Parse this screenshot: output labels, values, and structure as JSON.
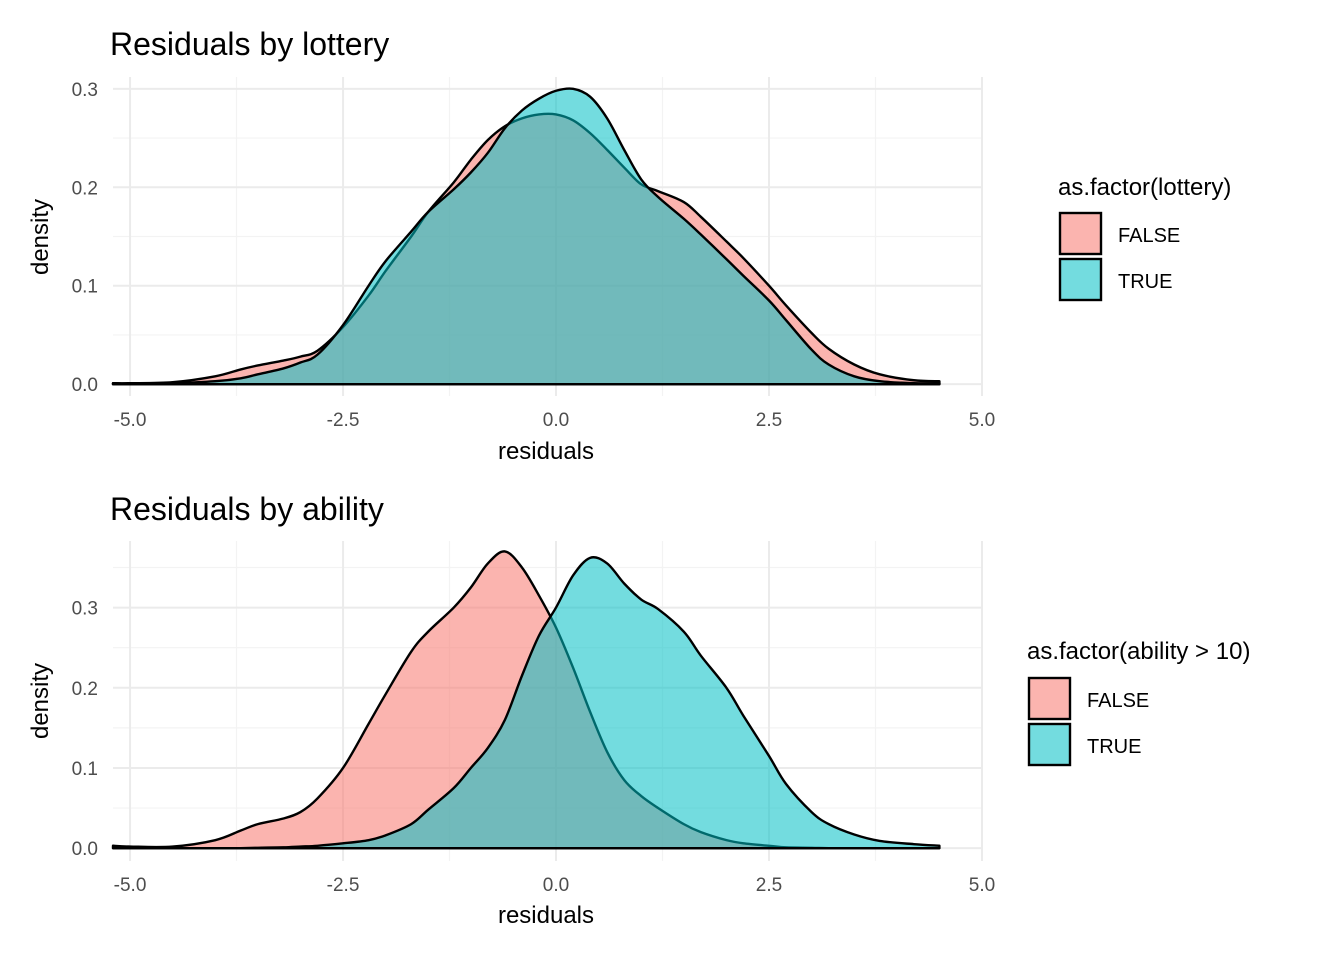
{
  "colors": {
    "false_fill": "#F8766D",
    "true_fill": "#00BFC4",
    "fill_alpha": 0.55,
    "outline": "#000000",
    "grid": "#EBEBEB"
  },
  "chart_data": [
    {
      "type": "area",
      "title": "Residuals by lottery",
      "xlabel": "residuals",
      "ylabel": "density",
      "xlim": [
        -5.2,
        5.0
      ],
      "ylim": [
        -0.012,
        0.312
      ],
      "x_ticks": [
        -5.0,
        -2.5,
        0.0,
        2.5,
        5.0
      ],
      "x_tick_labels": [
        "-5.0",
        "-2.5",
        "0.0",
        "2.5",
        "5.0"
      ],
      "y_ticks": [
        0.0,
        0.1,
        0.2,
        0.3
      ],
      "y_tick_labels": [
        "0.0",
        "0.1",
        "0.2",
        "0.3"
      ],
      "grid": true,
      "legend": {
        "title": "as.factor(lottery)",
        "position": "right",
        "entries": [
          "FALSE",
          "TRUE"
        ]
      },
      "series": [
        {
          "name": "FALSE",
          "color": "#F8766D",
          "x": [
            -5.2,
            -5.0,
            -4.5,
            -4.0,
            -3.7,
            -3.5,
            -3.2,
            -3.0,
            -2.8,
            -2.5,
            -2.2,
            -2.0,
            -1.7,
            -1.5,
            -1.2,
            -1.0,
            -0.8,
            -0.6,
            -0.4,
            -0.2,
            0.0,
            0.2,
            0.4,
            0.6,
            0.8,
            1.0,
            1.2,
            1.5,
            1.7,
            2.0,
            2.2,
            2.5,
            2.7,
            3.0,
            3.2,
            3.5,
            3.8,
            4.2,
            4.5
          ],
          "y": [
            0.001,
            0.001,
            0.002,
            0.008,
            0.015,
            0.019,
            0.024,
            0.028,
            0.034,
            0.058,
            0.09,
            0.115,
            0.15,
            0.175,
            0.205,
            0.228,
            0.248,
            0.262,
            0.27,
            0.274,
            0.274,
            0.268,
            0.255,
            0.238,
            0.22,
            0.203,
            0.196,
            0.185,
            0.17,
            0.145,
            0.128,
            0.1,
            0.08,
            0.052,
            0.036,
            0.02,
            0.01,
            0.004,
            0.003
          ]
        },
        {
          "name": "TRUE",
          "color": "#00BFC4",
          "x": [
            -5.2,
            -5.0,
            -4.5,
            -4.0,
            -3.7,
            -3.5,
            -3.2,
            -3.0,
            -2.8,
            -2.5,
            -2.2,
            -2.0,
            -1.7,
            -1.5,
            -1.2,
            -1.0,
            -0.8,
            -0.6,
            -0.4,
            -0.2,
            0.0,
            0.2,
            0.4,
            0.6,
            0.8,
            1.0,
            1.2,
            1.5,
            1.7,
            2.0,
            2.2,
            2.5,
            2.7,
            3.0,
            3.2,
            3.5,
            3.8,
            4.2,
            4.5
          ],
          "y": [
            0.001,
            0.0005,
            0.001,
            0.003,
            0.006,
            0.01,
            0.016,
            0.022,
            0.03,
            0.06,
            0.1,
            0.125,
            0.155,
            0.175,
            0.198,
            0.215,
            0.235,
            0.26,
            0.278,
            0.29,
            0.298,
            0.3,
            0.292,
            0.27,
            0.238,
            0.208,
            0.19,
            0.168,
            0.152,
            0.127,
            0.11,
            0.085,
            0.065,
            0.035,
            0.02,
            0.008,
            0.003,
            0.001,
            0.001
          ]
        }
      ]
    },
    {
      "type": "area",
      "title": "Residuals by ability",
      "xlabel": "residuals",
      "ylabel": "density",
      "xlim": [
        -5.2,
        5.0
      ],
      "ylim": [
        -0.016,
        0.383
      ],
      "x_ticks": [
        -5.0,
        -2.5,
        0.0,
        2.5,
        5.0
      ],
      "x_tick_labels": [
        "-5.0",
        "-2.5",
        "0.0",
        "2.5",
        "5.0"
      ],
      "y_ticks": [
        0.0,
        0.1,
        0.2,
        0.3
      ],
      "y_tick_labels": [
        "0.0",
        "0.1",
        "0.2",
        "0.3"
      ],
      "grid": true,
      "legend": {
        "title": "as.factor(ability > 10)",
        "position": "right",
        "entries": [
          "FALSE",
          "TRUE"
        ]
      },
      "series": [
        {
          "name": "FALSE",
          "color": "#F8766D",
          "x": [
            -5.2,
            -5.0,
            -4.5,
            -4.0,
            -3.7,
            -3.5,
            -3.2,
            -3.0,
            -2.8,
            -2.5,
            -2.2,
            -2.0,
            -1.7,
            -1.5,
            -1.2,
            -1.0,
            -0.8,
            -0.6,
            -0.4,
            -0.2,
            0.0,
            0.2,
            0.4,
            0.6,
            0.8,
            1.0,
            1.2,
            1.5,
            1.7,
            2.0,
            2.2,
            2.5,
            2.7,
            3.0,
            3.2,
            3.5,
            3.8,
            4.2,
            4.5
          ],
          "y": [
            0.003,
            0.002,
            0.002,
            0.01,
            0.022,
            0.03,
            0.037,
            0.045,
            0.062,
            0.1,
            0.155,
            0.192,
            0.245,
            0.27,
            0.3,
            0.325,
            0.355,
            0.37,
            0.35,
            0.315,
            0.275,
            0.225,
            0.17,
            0.12,
            0.085,
            0.065,
            0.05,
            0.03,
            0.02,
            0.01,
            0.006,
            0.003,
            0.001,
            0.0005,
            0.0,
            0.0,
            0.0,
            0.0,
            0.0
          ]
        },
        {
          "name": "TRUE",
          "color": "#00BFC4",
          "x": [
            -5.2,
            -5.0,
            -4.5,
            -4.0,
            -3.7,
            -3.5,
            -3.2,
            -3.0,
            -2.8,
            -2.5,
            -2.2,
            -2.0,
            -1.7,
            -1.5,
            -1.2,
            -1.0,
            -0.8,
            -0.6,
            -0.4,
            -0.2,
            0.0,
            0.2,
            0.4,
            0.6,
            0.8,
            1.0,
            1.2,
            1.5,
            1.7,
            2.0,
            2.2,
            2.5,
            2.7,
            3.0,
            3.2,
            3.5,
            3.8,
            4.2,
            4.5
          ],
          "y": [
            0.0,
            0.0,
            0.0,
            0.0,
            0.0,
            0.0005,
            0.001,
            0.002,
            0.003,
            0.006,
            0.01,
            0.016,
            0.03,
            0.048,
            0.075,
            0.1,
            0.125,
            0.16,
            0.215,
            0.265,
            0.3,
            0.34,
            0.362,
            0.355,
            0.33,
            0.31,
            0.298,
            0.27,
            0.24,
            0.2,
            0.165,
            0.115,
            0.08,
            0.045,
            0.03,
            0.017,
            0.009,
            0.005,
            0.003
          ]
        }
      ]
    }
  ]
}
